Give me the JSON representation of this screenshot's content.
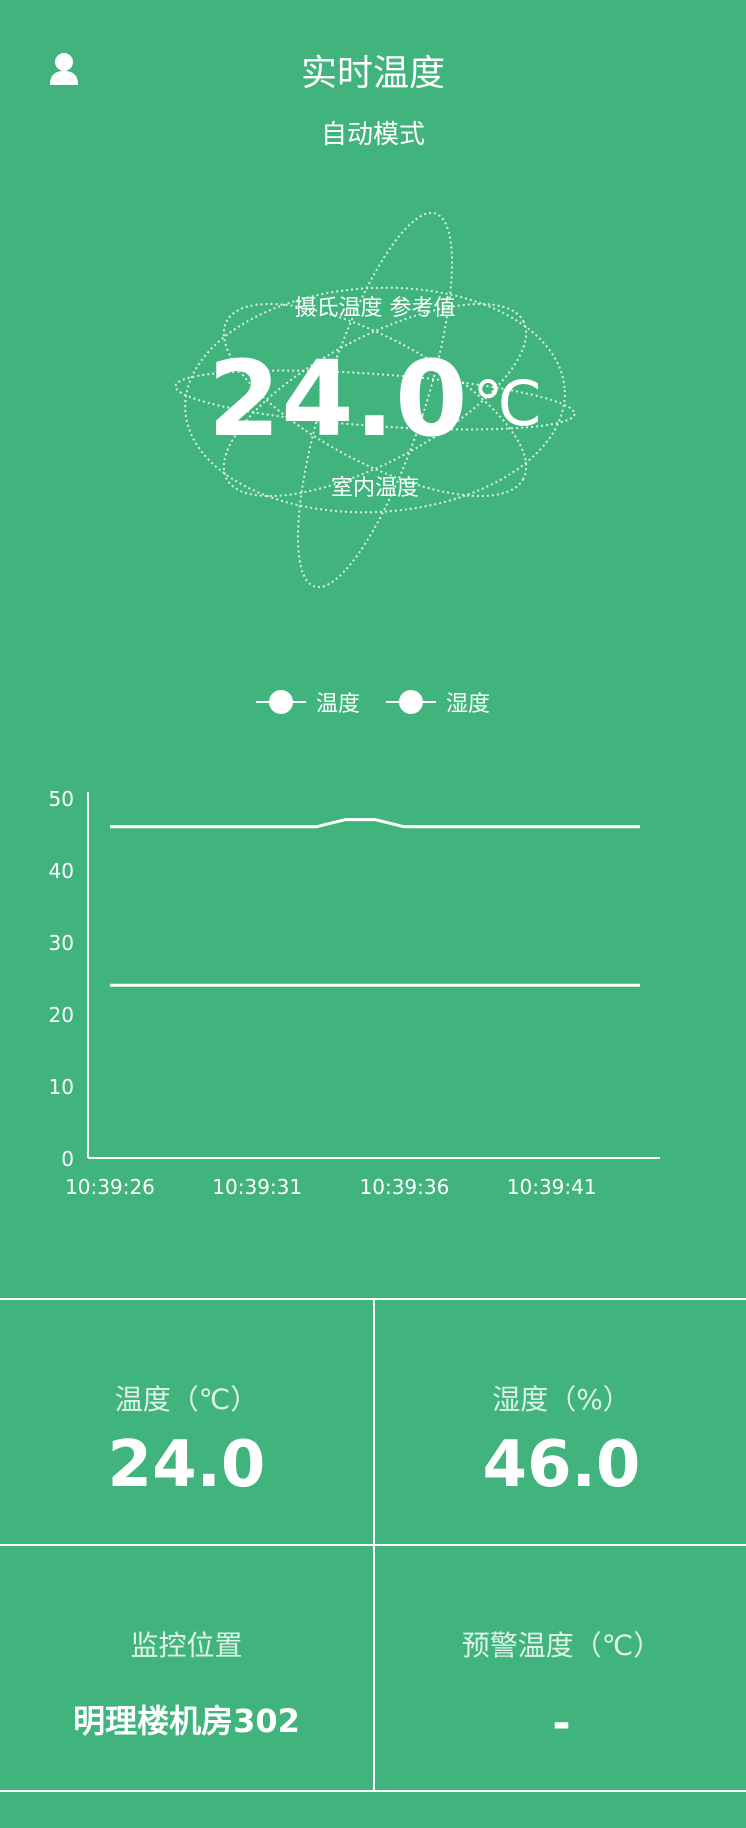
{
  "header": {
    "title": "实时温度",
    "mode": "自动模式",
    "user_icon": "user-icon"
  },
  "gauge": {
    "label_top": "摄氏温度 参考值",
    "value": "24.0",
    "unit": "℃",
    "label_bottom": "室内温度"
  },
  "chart_data": {
    "type": "line",
    "title": "",
    "legend": [
      "温度",
      "湿度"
    ],
    "legend_position": "top-center",
    "x_tick_labels": [
      "10:39:26",
      "10:39:31",
      "10:39:36",
      "10:39:41"
    ],
    "x": [
      "10:39:26",
      "10:39:27",
      "10:39:28",
      "10:39:29",
      "10:39:30",
      "10:39:31",
      "10:39:32",
      "10:39:33",
      "10:39:34",
      "10:39:35",
      "10:39:36",
      "10:39:37",
      "10:39:38",
      "10:39:39",
      "10:39:40",
      "10:39:41",
      "10:39:42",
      "10:39:43",
      "10:39:44"
    ],
    "series": [
      {
        "name": "温度",
        "values": [
          24,
          24,
          24,
          24,
          24,
          24,
          24,
          24,
          24,
          24,
          24,
          24,
          24,
          24,
          24,
          24,
          24,
          24,
          24
        ]
      },
      {
        "name": "湿度",
        "values": [
          46,
          46,
          46,
          46,
          46,
          46,
          46,
          46,
          47,
          47,
          46,
          46,
          46,
          46,
          46,
          46,
          46,
          46,
          46
        ]
      }
    ],
    "ylim": [
      0,
      50
    ],
    "y_ticks": [
      0,
      10,
      20,
      30,
      40,
      50
    ],
    "grid": false
  },
  "stats": {
    "temperature": {
      "label": "温度（℃）",
      "value": "24.0"
    },
    "humidity": {
      "label": "湿度（%）",
      "value": "46.0"
    },
    "location": {
      "label": "监控位置",
      "value": "明理楼机房302"
    },
    "warning": {
      "label": "预警温度（℃）",
      "value": "-"
    }
  },
  "colors": {
    "background": "#40b47c",
    "foreground": "#ffffff"
  }
}
